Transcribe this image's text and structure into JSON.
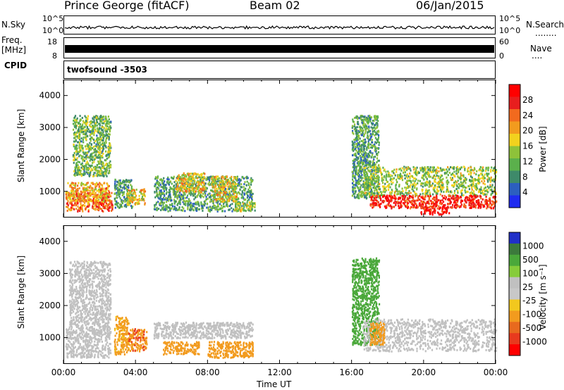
{
  "header": {
    "station": "Prince George (fitACF)",
    "beam": "Beam 02",
    "date": "06/Jan/2015"
  },
  "side_labels": {
    "nsky": "N.Sky",
    "freq": "Freq.",
    "freq_unit": "[MHz]",
    "cpid": "CPID",
    "nsearch": "N.Search",
    "nave": "Nave",
    "nsearch_dots": "........",
    "nave_dots": "...."
  },
  "nsky_scale": {
    "top": "10^5",
    "bottom": "10^0"
  },
  "freq_scale": {
    "left_top": "18",
    "left_bottom": "8",
    "right_top": "60",
    "right_bottom": "0"
  },
  "cpid_text": "twofsound  -3503",
  "colors": {
    "power": [
      "#1f2bf0",
      "#2c5fbf",
      "#3e8a6a",
      "#5bb04c",
      "#8ec23a",
      "#f2d21e",
      "#f29b1e",
      "#f26a1e",
      "#e81e1e",
      "#ff0000"
    ],
    "velocity": [
      "#2030c8",
      "#3c7a3c",
      "#4aa83a",
      "#86cc3a",
      "#c0c0c0",
      "#c8c8c8",
      "#f2c81e",
      "#f29b1e",
      "#e86a1e",
      "#e83a1e",
      "#ff0000"
    ]
  },
  "chart_data": [
    {
      "type": "heatmap",
      "name": "power",
      "xlabel": "",
      "ylabel": "Slant Range [km]",
      "xlim": [
        0,
        24
      ],
      "ylim": [
        180,
        4500
      ],
      "yticks": [
        1000,
        2000,
        3000,
        4000
      ],
      "colorbar": {
        "label": "Power [dB]",
        "range": [
          0,
          32
        ],
        "ticks": [
          "28",
          "24",
          "20",
          "16",
          "12",
          "8",
          "4"
        ]
      },
      "scatter_regions": [
        {
          "t0": 0.1,
          "t1": 2.7,
          "r0": 400,
          "r1": 1000,
          "value": 24
        },
        {
          "t0": 0.2,
          "t1": 2.5,
          "r0": 700,
          "r1": 1300,
          "value": 20
        },
        {
          "t0": 0.5,
          "t1": 2.6,
          "r0": 1500,
          "r1": 3400,
          "value": 12
        },
        {
          "t0": 2.8,
          "t1": 3.8,
          "r0": 500,
          "r1": 1400,
          "value": 10
        },
        {
          "t0": 3.5,
          "t1": 4.5,
          "r0": 600,
          "r1": 1100,
          "value": 18
        },
        {
          "t0": 5.0,
          "t1": 10.5,
          "r0": 400,
          "r1": 1500,
          "value": 10
        },
        {
          "t0": 6.2,
          "t1": 7.8,
          "r0": 1000,
          "r1": 1600,
          "value": 18
        },
        {
          "t0": 8.2,
          "t1": 9.6,
          "r0": 700,
          "r1": 1500,
          "value": 18
        },
        {
          "t0": 9.5,
          "t1": 10.6,
          "r0": 400,
          "r1": 700,
          "value": 14
        },
        {
          "t0": 16.0,
          "t1": 17.5,
          "r0": 800,
          "r1": 3400,
          "value": 10
        },
        {
          "t0": 16.6,
          "t1": 24.0,
          "r0": 900,
          "r1": 1800,
          "value": 14
        },
        {
          "t0": 17.0,
          "t1": 24.0,
          "r0": 500,
          "r1": 900,
          "value": 28
        },
        {
          "t0": 19.8,
          "t1": 21.4,
          "r0": 300,
          "r1": 550,
          "value": 30
        }
      ]
    },
    {
      "type": "heatmap",
      "name": "velocity",
      "xlabel": "Time UT",
      "ylabel": "Slant Range [km]",
      "xlim": [
        0,
        24
      ],
      "ylim": [
        180,
        4500
      ],
      "xticks": [
        "00:00",
        "04:00",
        "08:00",
        "12:00",
        "16:00",
        "20:00",
        "00:00"
      ],
      "yticks": [
        1000,
        2000,
        3000,
        4000
      ],
      "colorbar": {
        "label": "Velocity [m s⁻¹]",
        "range": [
          -1200,
          1200
        ],
        "ticks": [
          "1000",
          "500",
          "100",
          "25",
          "-25",
          "-100",
          "-500",
          "-1000"
        ]
      },
      "scatter_regions": [
        {
          "t0": 0.1,
          "t1": 2.6,
          "r0": 400,
          "r1": 1300,
          "value": 0
        },
        {
          "t0": 0.3,
          "t1": 2.6,
          "r0": 1300,
          "r1": 3400,
          "value": 0
        },
        {
          "t0": 2.8,
          "t1": 3.6,
          "r0": 500,
          "r1": 1700,
          "value": -150
        },
        {
          "t0": 3.6,
          "t1": 4.6,
          "r0": 600,
          "r1": 1300,
          "value": -400
        },
        {
          "t0": 5.0,
          "t1": 10.5,
          "r0": 1000,
          "r1": 1500,
          "value": 0
        },
        {
          "t0": 5.5,
          "t1": 7.5,
          "r0": 500,
          "r1": 900,
          "value": -200
        },
        {
          "t0": 8.0,
          "t1": 10.5,
          "r0": 400,
          "r1": 900,
          "value": -200
        },
        {
          "t0": 16.0,
          "t1": 17.5,
          "r0": 800,
          "r1": 3500,
          "value": 200
        },
        {
          "t0": 16.6,
          "t1": 24.0,
          "r0": 600,
          "r1": 1600,
          "value": 0
        },
        {
          "t0": 17.0,
          "t1": 17.8,
          "r0": 800,
          "r1": 1500,
          "value": -200
        }
      ]
    }
  ]
}
